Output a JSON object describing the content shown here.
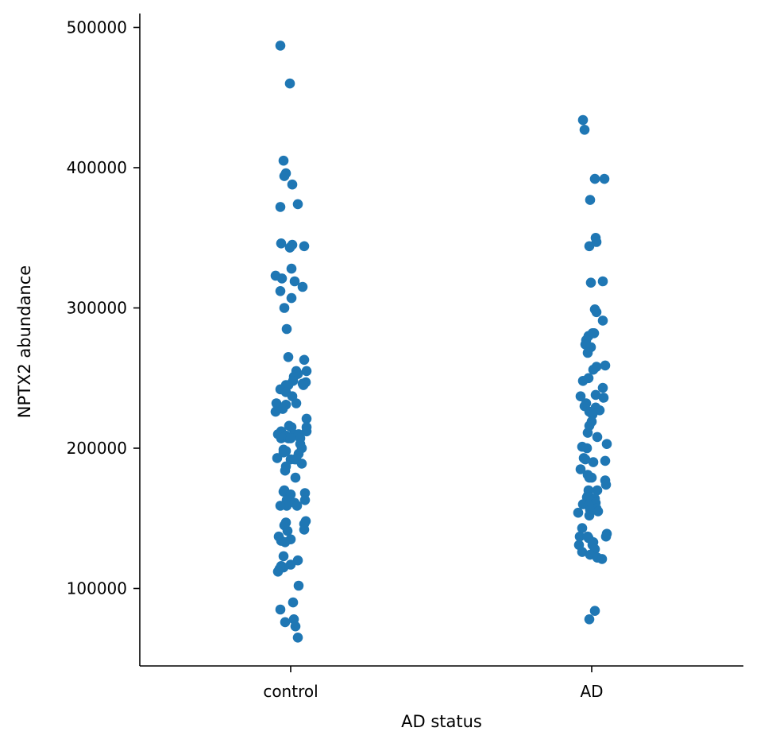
{
  "chart_data": {
    "type": "scatter",
    "subtype": "strip",
    "title": "",
    "xlabel": "AD status",
    "ylabel": "NPTX2 abundance",
    "categories": [
      "control",
      "AD"
    ],
    "ylim": [
      45000,
      510000
    ],
    "yticks": [
      100000,
      200000,
      300000,
      400000,
      500000
    ],
    "ytick_labels": [
      "100000",
      "200000",
      "300000",
      "400000",
      "500000"
    ],
    "grid": false,
    "legend": "none",
    "color": "#1f77b4",
    "series": [
      {
        "category": "control",
        "points": [
          [
            -0.13,
            487000
          ],
          [
            -0.01,
            460000
          ],
          [
            -0.09,
            405000
          ],
          [
            -0.06,
            396000
          ],
          [
            -0.08,
            394000
          ],
          [
            0.02,
            388000
          ],
          [
            0.09,
            374000
          ],
          [
            -0.13,
            372000
          ],
          [
            -0.12,
            346000
          ],
          [
            0.02,
            345000
          ],
          [
            -0.01,
            343000
          ],
          [
            0.17,
            344000
          ],
          [
            0.01,
            328000
          ],
          [
            -0.19,
            323000
          ],
          [
            -0.11,
            321000
          ],
          [
            0.05,
            319000
          ],
          [
            0.15,
            315000
          ],
          [
            -0.13,
            312000
          ],
          [
            0.01,
            307000
          ],
          [
            -0.08,
            300000
          ],
          [
            -0.05,
            285000
          ],
          [
            -0.03,
            265000
          ],
          [
            0.17,
            263000
          ],
          [
            0.2,
            255000
          ],
          [
            0.07,
            255000
          ],
          [
            0.09,
            253000
          ],
          [
            0.04,
            251000
          ],
          [
            0.03,
            248000
          ],
          [
            0.19,
            247000
          ],
          [
            0.15,
            246000
          ],
          [
            -0.06,
            245000
          ],
          [
            -0.03,
            245000
          ],
          [
            0.16,
            245000
          ],
          [
            -0.13,
            242000
          ],
          [
            -0.06,
            240000
          ],
          [
            0.02,
            237000
          ],
          [
            -0.18,
            232000
          ],
          [
            0.07,
            232000
          ],
          [
            -0.06,
            231000
          ],
          [
            -0.1,
            228000
          ],
          [
            -0.19,
            226000
          ],
          [
            0.2,
            221000
          ],
          [
            -0.02,
            216000
          ],
          [
            0.01,
            215000
          ],
          [
            0.2,
            215000
          ],
          [
            0.2,
            212000
          ],
          [
            -0.12,
            212000
          ],
          [
            0.04,
            210000
          ],
          [
            0.1,
            210000
          ],
          [
            -0.06,
            209000
          ],
          [
            -0.16,
            210000
          ],
          [
            0.12,
            207000
          ],
          [
            -0.12,
            207000
          ],
          [
            -0.08,
            208000
          ],
          [
            -0.03,
            207000
          ],
          [
            0.0,
            207000
          ],
          [
            0.12,
            203000
          ],
          [
            0.14,
            200000
          ],
          [
            -0.09,
            199000
          ],
          [
            -0.06,
            198000
          ],
          [
            -0.09,
            197000
          ],
          [
            0.1,
            196000
          ],
          [
            -0.17,
            193000
          ],
          [
            0.0,
            192000
          ],
          [
            0.05,
            192000
          ],
          [
            0.07,
            192000
          ],
          [
            0.14,
            189000
          ],
          [
            -0.06,
            187000
          ],
          [
            -0.07,
            184000
          ],
          [
            0.06,
            179000
          ],
          [
            -0.08,
            170000
          ],
          [
            -0.09,
            169000
          ],
          [
            0.18,
            168000
          ],
          [
            0.0,
            167000
          ],
          [
            -0.02,
            164000
          ],
          [
            0.18,
            163000
          ],
          [
            -0.05,
            163000
          ],
          [
            0.05,
            161000
          ],
          [
            -0.05,
            159000
          ],
          [
            0.08,
            159000
          ],
          [
            -0.13,
            159000
          ],
          [
            -0.06,
            147000
          ],
          [
            0.19,
            148000
          ],
          [
            0.17,
            146000
          ],
          [
            -0.08,
            145000
          ],
          [
            0.17,
            142000
          ],
          [
            -0.04,
            141000
          ],
          [
            -0.15,
            137000
          ],
          [
            0.0,
            135000
          ],
          [
            -0.12,
            134000
          ],
          [
            -0.07,
            133000
          ],
          [
            -0.09,
            123000
          ],
          [
            0.09,
            120000
          ],
          [
            0.0,
            117000
          ],
          [
            -0.12,
            116000
          ],
          [
            -0.09,
            115000
          ],
          [
            -0.14,
            114000
          ],
          [
            -0.16,
            112000
          ],
          [
            0.1,
            102000
          ],
          [
            0.03,
            90000
          ],
          [
            -0.13,
            85000
          ],
          [
            0.04,
            78000
          ],
          [
            -0.07,
            76000
          ],
          [
            0.06,
            73000
          ],
          [
            0.09,
            65000
          ]
        ]
      },
      {
        "category": "AD",
        "points": [
          [
            -0.11,
            434000
          ],
          [
            -0.09,
            427000
          ],
          [
            0.04,
            392000
          ],
          [
            0.16,
            392000
          ],
          [
            -0.02,
            377000
          ],
          [
            0.05,
            350000
          ],
          [
            0.06,
            347000
          ],
          [
            -0.03,
            344000
          ],
          [
            0.14,
            319000
          ],
          [
            -0.01,
            318000
          ],
          [
            0.04,
            299000
          ],
          [
            0.06,
            297000
          ],
          [
            0.14,
            291000
          ],
          [
            -0.04,
            280000
          ],
          [
            0.01,
            282000
          ],
          [
            0.03,
            282000
          ],
          [
            -0.07,
            277000
          ],
          [
            -0.08,
            274000
          ],
          [
            -0.01,
            272000
          ],
          [
            -0.05,
            268000
          ],
          [
            0.17,
            259000
          ],
          [
            0.06,
            258000
          ],
          [
            0.02,
            256000
          ],
          [
            -0.04,
            250000
          ],
          [
            -0.11,
            248000
          ],
          [
            0.14,
            243000
          ],
          [
            0.05,
            238000
          ],
          [
            -0.14,
            237000
          ],
          [
            0.15,
            236000
          ],
          [
            -0.07,
            232000
          ],
          [
            -0.09,
            230000
          ],
          [
            0.05,
            229000
          ],
          [
            0.1,
            227000
          ],
          [
            -0.03,
            226000
          ],
          [
            0.01,
            224000
          ],
          [
            0.0,
            219000
          ],
          [
            -0.03,
            216000
          ],
          [
            -0.05,
            211000
          ],
          [
            0.07,
            208000
          ],
          [
            0.19,
            203000
          ],
          [
            -0.12,
            201000
          ],
          [
            -0.06,
            200000
          ],
          [
            -0.1,
            193000
          ],
          [
            -0.08,
            192000
          ],
          [
            0.17,
            191000
          ],
          [
            0.02,
            190000
          ],
          [
            -0.14,
            185000
          ],
          [
            -0.05,
            181000
          ],
          [
            -0.03,
            179000
          ],
          [
            0.0,
            179000
          ],
          [
            0.17,
            177000
          ],
          [
            0.18,
            174000
          ],
          [
            0.07,
            170000
          ],
          [
            -0.04,
            170000
          ],
          [
            -0.05,
            166000
          ],
          [
            -0.06,
            165000
          ],
          [
            -0.02,
            165000
          ],
          [
            0.04,
            164000
          ],
          [
            -0.01,
            162000
          ],
          [
            0.05,
            161000
          ],
          [
            -0.11,
            160000
          ],
          [
            -0.04,
            159000
          ],
          [
            0.06,
            157000
          ],
          [
            -0.02,
            156000
          ],
          [
            0.08,
            155000
          ],
          [
            -0.17,
            154000
          ],
          [
            -0.03,
            152000
          ],
          [
            -0.12,
            143000
          ],
          [
            0.19,
            139000
          ],
          [
            0.18,
            137000
          ],
          [
            -0.15,
            137000
          ],
          [
            -0.05,
            137000
          ],
          [
            -0.04,
            136000
          ],
          [
            0.02,
            133000
          ],
          [
            0.01,
            131000
          ],
          [
            -0.16,
            131000
          ],
          [
            0.04,
            128000
          ],
          [
            -0.12,
            126000
          ],
          [
            -0.02,
            124000
          ],
          [
            0.07,
            122000
          ],
          [
            0.13,
            121000
          ],
          [
            0.04,
            84000
          ],
          [
            -0.03,
            78000
          ]
        ]
      }
    ]
  }
}
